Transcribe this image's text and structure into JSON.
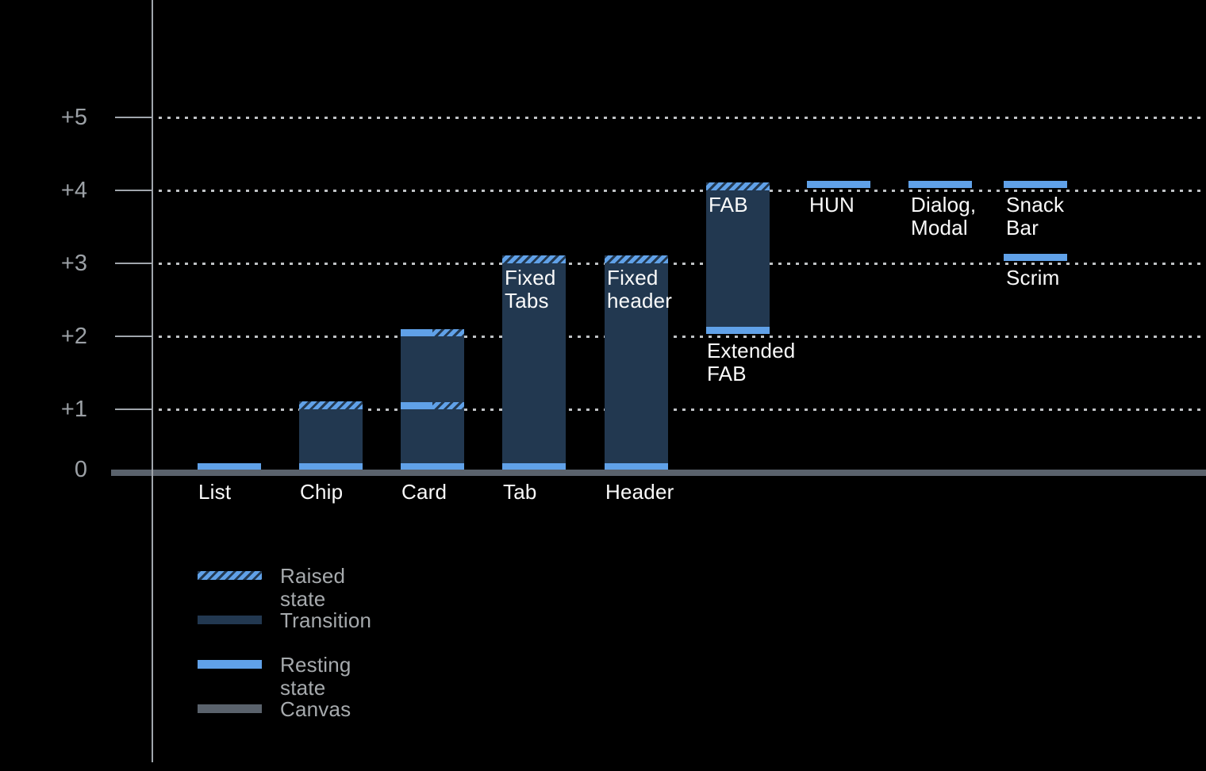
{
  "chart_data": {
    "type": "bar",
    "subtype": "elevation-range-diagram",
    "title": "",
    "xlabel": "",
    "ylabel": "",
    "y_axis": {
      "range": [
        0,
        5
      ],
      "tick_labels_by_level": [
        "0",
        "+1",
        "+2",
        "+3",
        "+4",
        "+5"
      ],
      "grid": "dotted horizontal lines at +1..+5",
      "baseline": "Canvas at 0"
    },
    "legend_position": "bottom-left",
    "legend": [
      {
        "label": "Raised state",
        "style": "raised"
      },
      {
        "label": "Transition",
        "style": "transition"
      },
      {
        "label": "Resting state",
        "style": "resting"
      },
      {
        "label": "Canvas",
        "style": "canvas"
      }
    ],
    "components": [
      {
        "name": "List",
        "axis_label": "List",
        "resting": [
          0
        ],
        "raised": [],
        "transition": null
      },
      {
        "name": "Chip",
        "axis_label": "Chip",
        "resting": [
          0
        ],
        "raised": [
          1
        ],
        "transition": [
          0,
          1
        ]
      },
      {
        "name": "Card",
        "axis_label": "Card",
        "resting": [
          0,
          1,
          2
        ],
        "raised": [
          1,
          2
        ],
        "transition": [
          0,
          2
        ]
      },
      {
        "name": "Fixed Tabs",
        "axis_label": "Tab",
        "bar_label": "Fixed\nTabs",
        "bar_label_level": 3,
        "resting": [
          0
        ],
        "raised": [
          3
        ],
        "transition": [
          0,
          3
        ]
      },
      {
        "name": "Fixed header",
        "axis_label": "Header",
        "bar_label": "Fixed\nheader",
        "bar_label_level": 3,
        "resting": [
          0
        ],
        "raised": [
          3
        ],
        "transition": [
          0,
          3
        ]
      },
      {
        "name": "FAB / Extended FAB",
        "bar_label": "FAB",
        "bar_label_level": 4,
        "below_label": "Extended\nFAB",
        "below_label_level": 2,
        "resting": [
          2
        ],
        "raised": [
          4
        ],
        "transition": [
          2,
          4
        ]
      },
      {
        "name": "HUN",
        "bar_label": "HUN",
        "bar_label_level": 4,
        "resting": [
          4
        ],
        "raised": [],
        "transition": null
      },
      {
        "name": "Dialog, Modal",
        "bar_label": "Dialog,\nModal",
        "bar_label_level": 4,
        "resting": [
          4
        ],
        "raised": [],
        "transition": null
      },
      {
        "name": "Snack Bar",
        "bar_label": "Snack Bar",
        "bar_label_level": 4,
        "resting": [
          4
        ],
        "raised": [],
        "transition": null
      },
      {
        "name": "Scrim",
        "bar_label": "Scrim",
        "bar_label_level": 3,
        "resting": [
          3
        ],
        "raised": [],
        "transition": null
      }
    ]
  },
  "colors": {
    "background": "#000000",
    "resting": "#60A1E8",
    "transition": "#223850",
    "canvas": "#5A626C",
    "grid_dots": "#BFC2C5",
    "axis_line": "#A0A6AC",
    "tick_label": "#9CA1A6",
    "legend_text": "#A6AAAD",
    "bar_label": "#FAFAFA"
  }
}
